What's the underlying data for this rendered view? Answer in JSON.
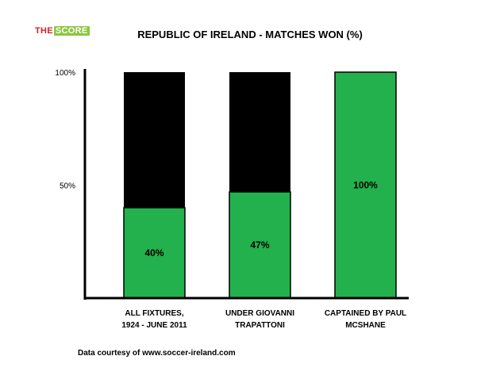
{
  "logo": {
    "part1": "THE",
    "part2": "SCORE"
  },
  "footer": "Data courtesy of www.soccer-ireland.com",
  "chart_data": {
    "type": "bar",
    "title": "REPUBLIC OF IRELAND - MATCHES WON (%)",
    "xlabel": "",
    "ylabel": "",
    "ylim": [
      0,
      100
    ],
    "y_ticks": [
      50,
      100
    ],
    "y_tick_labels": [
      "50%",
      "100%"
    ],
    "categories": [
      [
        "ALL FIXTURES,",
        "1924 - JUNE 2011"
      ],
      [
        "UNDER GIOVANNI",
        "TRAPATTONI"
      ],
      [
        "CAPTAINED BY PAUL",
        "MCSHANE"
      ]
    ],
    "series": [
      {
        "values": [
          40,
          47,
          100
        ],
        "labels": [
          "40%",
          "47%",
          "100%"
        ],
        "color": "#22b14c"
      }
    ],
    "total_color": "#000000",
    "grid": false
  }
}
